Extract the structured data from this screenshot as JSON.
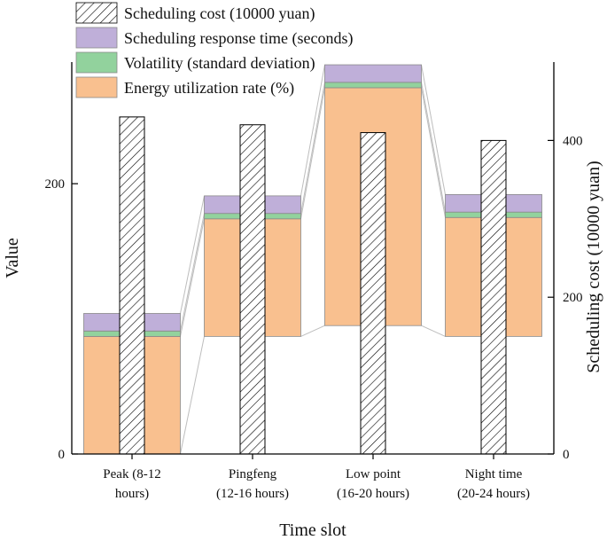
{
  "chart_data": {
    "type": "bar",
    "subtype": "stacked-bar with overlaid secondary-axis bar",
    "categories": [
      [
        "Peak (8-12",
        "hours)"
      ],
      [
        "Pingfeng",
        "(12-16 hours)"
      ],
      [
        "Low point",
        "(16-20 hours)"
      ],
      [
        "Night time",
        "(20-24 hours)"
      ]
    ],
    "xlabel": "Time slot",
    "ylabel": "Value",
    "y2label": "Scheduling cost (10000 yuan)",
    "ylim": [
      0,
      290
    ],
    "y2lim": [
      0,
      500
    ],
    "yticks": [
      0,
      200
    ],
    "y2ticks": [
      0,
      200,
      400
    ],
    "legend_position": "top-left",
    "stack_series": [
      {
        "key": "energy",
        "name": "Energy utilization rate (%)",
        "values": [
          87,
          87,
          176,
          88
        ],
        "color": "#f9c08f"
      },
      {
        "key": "volatility",
        "name": "Volatility (standard deviation)",
        "values": [
          4,
          4,
          4,
          4
        ],
        "color": "#92d29d"
      },
      {
        "key": "response",
        "name": "Scheduling response time (seconds)",
        "values": [
          13,
          13,
          13,
          13
        ],
        "color": "#bfafd9"
      }
    ],
    "stack_bases": [
      0,
      87,
      95,
      87
    ],
    "cost_series": {
      "name": "Scheduling cost (10000 yuan)",
      "axis": "right",
      "values": [
        430,
        420,
        410,
        400
      ],
      "pattern": "diagonal-hatch"
    },
    "legend_order": [
      "cost",
      "response",
      "volatility",
      "energy"
    ]
  }
}
